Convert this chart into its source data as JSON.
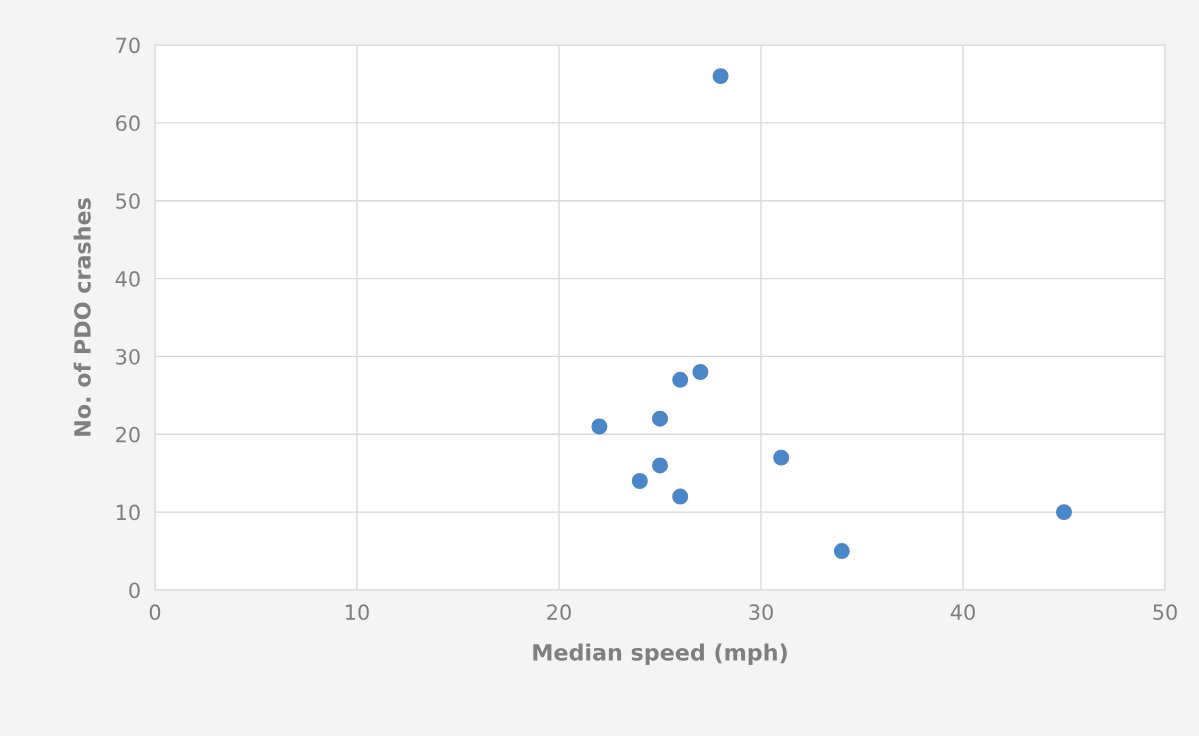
{
  "chart_data": {
    "type": "scatter",
    "xlabel": "Median speed (mph)",
    "ylabel": "No. of PDO crashes",
    "series": [
      {
        "color": "#4a86c8",
        "x": [
          28,
          27,
          26,
          25,
          22,
          25,
          24,
          26,
          31,
          34,
          45
        ],
        "values": [
          66,
          28,
          27,
          22,
          21,
          16,
          14,
          12,
          17,
          5,
          10
        ]
      }
    ],
    "xlim": [
      0,
      50
    ],
    "xticks": [
      0,
      10,
      20,
      30,
      40,
      50
    ],
    "ylim": [
      0,
      70
    ],
    "yticks": [
      0,
      10,
      20,
      30,
      40,
      50,
      60,
      70
    ],
    "grid": true,
    "marker": "circle"
  }
}
